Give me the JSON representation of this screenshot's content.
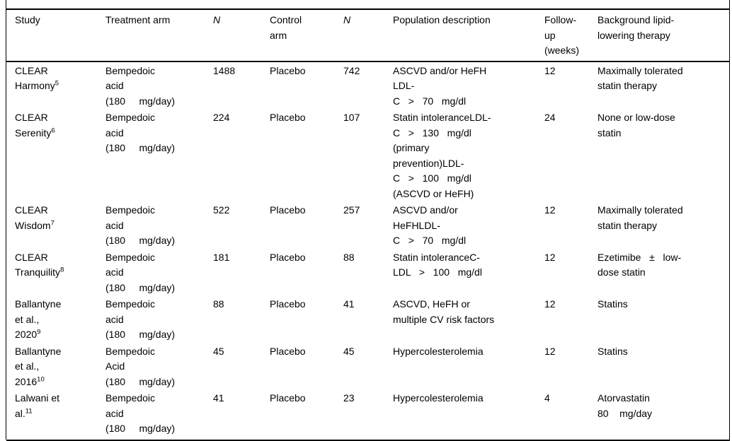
{
  "colors": {
    "text": "#000000",
    "background": "#ffffff",
    "rule": "#000000"
  },
  "table": {
    "headers": [
      {
        "key": "study",
        "label": "Study",
        "italic": false
      },
      {
        "key": "treatment_arm",
        "label": "Treatment arm",
        "italic": false
      },
      {
        "key": "n_treatment",
        "label": "N",
        "italic": true
      },
      {
        "key": "control_arm",
        "label": "Control\narm",
        "italic": false
      },
      {
        "key": "n_control",
        "label": "N",
        "italic": true
      },
      {
        "key": "population",
        "label": "Population description",
        "italic": false
      },
      {
        "key": "follow_up",
        "label": "Follow-\nup\n(weeks)",
        "italic": false
      },
      {
        "key": "background",
        "label": "Background lipid-\nlowering therapy",
        "italic": false
      }
    ],
    "rows": [
      {
        "study": "CLEAR\nHarmony",
        "study_ref": "5",
        "treatment_arm": "Bempedoic\nacid\n(180     mg/day)",
        "n_treatment": "1488",
        "control_arm": "Placebo",
        "n_control": "742",
        "population": "ASCVD and/or HeFH\nLDL-\nC   >   70   mg/dl",
        "follow_up_weeks": "12",
        "background_therapy": "Maximally tolerated\nstatin therapy"
      },
      {
        "study": "CLEAR\nSerenity",
        "study_ref": "6",
        "treatment_arm": "Bempedoic\nacid\n(180     mg/day)",
        "n_treatment": "224",
        "control_arm": "Placebo",
        "n_control": "107",
        "population": "Statin intoleranceLDL-\nC   >   130   mg/dl\n(primary\nprevention)LDL-\nC   >   100   mg/dl\n(ASCVD or HeFH)",
        "follow_up_weeks": "24",
        "background_therapy": "None or low-dose\nstatin"
      },
      {
        "study": "CLEAR\nWisdom",
        "study_ref": "7",
        "treatment_arm": "Bempedoic\nacid\n(180     mg/day)",
        "n_treatment": "522",
        "control_arm": "Placebo",
        "n_control": "257",
        "population": "ASCVD and/or\nHeFHLDL-\nC   >   70   mg/dl",
        "follow_up_weeks": "12",
        "background_therapy": "Maximally tolerated\nstatin therapy"
      },
      {
        "study": "CLEAR\nTranquility",
        "study_ref": "8",
        "treatment_arm": "Bempedoic\nacid\n(180     mg/day)",
        "n_treatment": "181",
        "control_arm": "Placebo",
        "n_control": "88",
        "population": "Statin intoleranceC-\nLDL   >   100   mg/dl",
        "follow_up_weeks": "12",
        "background_therapy": "Ezetimibe   ±   low-\ndose statin"
      },
      {
        "study": "Ballantyne\net al.,\n2020",
        "study_ref": "9",
        "treatment_arm": "Bempedoic\nacid\n(180     mg/day)",
        "n_treatment": "88",
        "control_arm": "Placebo",
        "n_control": "41",
        "population": "ASCVD, HeFH or\nmultiple CV risk factors",
        "follow_up_weeks": "12",
        "background_therapy": "Statins"
      },
      {
        "study": "Ballantyne\net al.,\n2016",
        "study_ref": "10",
        "treatment_arm": "Bempedoic\nAcid\n(180     mg/day)",
        "n_treatment": "45",
        "control_arm": "Placebo",
        "n_control": "45",
        "population": "Hypercolesterolemia",
        "follow_up_weeks": "12",
        "background_therapy": "Statins"
      },
      {
        "study": "Lalwani et\nal.",
        "study_ref": "11",
        "treatment_arm": "Bempedoic\nacid\n(180     mg/day)",
        "n_treatment": "41",
        "control_arm": "Placebo",
        "n_control": "23",
        "population": "Hypercolesterolemia",
        "follow_up_weeks": "4",
        "background_therapy": "Atorvastatin\n80    mg/day"
      }
    ]
  }
}
